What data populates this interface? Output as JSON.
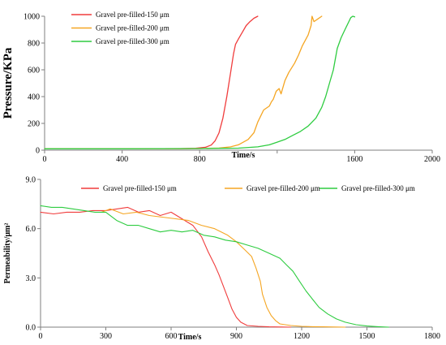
{
  "chart_data": [
    {
      "type": "line",
      "title": "",
      "xlabel": "Time/s",
      "ylabel": "Pressure/KPa",
      "xlim": [
        0,
        2000
      ],
      "ylim": [
        0,
        1000
      ],
      "xticks": [
        0,
        400,
        800,
        1200,
        1600,
        2000
      ],
      "xtick_labels": [
        "0",
        "400",
        "800",
        "",
        "1600",
        "2000"
      ],
      "yticks": [
        0,
        200,
        400,
        600,
        800,
        1000
      ],
      "ytick_labels": [
        "0",
        "200",
        "400",
        "600",
        "800",
        "1000"
      ],
      "grid": false,
      "legend": "top-left",
      "series": [
        {
          "name": "Gravel pre-filled-150 μm",
          "color": "#f03c3c",
          "x": [
            0,
            400,
            700,
            780,
            830,
            860,
            880,
            900,
            920,
            940,
            960,
            975,
            985,
            1000,
            1020,
            1040,
            1060,
            1080,
            1100
          ],
          "y": [
            10,
            10,
            11,
            14,
            22,
            38,
            70,
            130,
            240,
            400,
            580,
            720,
            790,
            830,
            880,
            930,
            960,
            985,
            1000
          ]
        },
        {
          "name": "Gravel pre-filled-200 μm",
          "color": "#f5a623",
          "x": [
            0,
            400,
            800,
            900,
            960,
            1000,
            1050,
            1080,
            1100,
            1130,
            1160,
            1170,
            1180,
            1195,
            1210,
            1220,
            1240,
            1260,
            1290,
            1310,
            1330,
            1360,
            1375,
            1380,
            1390,
            1410,
            1430
          ],
          "y": [
            10,
            10,
            12,
            16,
            25,
            40,
            80,
            130,
            210,
            300,
            330,
            360,
            380,
            440,
            460,
            420,
            520,
            580,
            650,
            710,
            780,
            860,
            930,
            1000,
            960,
            980,
            1000
          ]
        },
        {
          "name": "Gravel pre-filled-300 μm",
          "color": "#2ecc40",
          "x": [
            0,
            400,
            800,
            1000,
            1100,
            1160,
            1200,
            1240,
            1280,
            1320,
            1360,
            1400,
            1430,
            1450,
            1470,
            1490,
            1500,
            1510,
            1530,
            1550,
            1570,
            1580,
            1590,
            1600
          ],
          "y": [
            10,
            10,
            12,
            15,
            25,
            40,
            60,
            80,
            110,
            140,
            180,
            240,
            320,
            400,
            500,
            600,
            680,
            760,
            840,
            900,
            960,
            990,
            1000,
            995
          ]
        }
      ]
    },
    {
      "type": "line",
      "title": "",
      "xlabel": "Time/s",
      "ylabel": "Permeability/μm²",
      "xlim": [
        0,
        1800
      ],
      "ylim": [
        0,
        9
      ],
      "xticks": [
        0,
        300,
        600,
        900,
        1200,
        1500,
        1800
      ],
      "xtick_labels": [
        "0",
        "300",
        "600",
        "900",
        "1200",
        "1500",
        "1800"
      ],
      "yticks": [
        0,
        3,
        6,
        9
      ],
      "ytick_labels": [
        "0.0",
        "3.0",
        "6.0",
        "9.0"
      ],
      "grid": false,
      "legend": "top",
      "series": [
        {
          "name": "Gravel pre-filled-150 μm",
          "color": "#f03c3c",
          "x": [
            0,
            60,
            120,
            180,
            240,
            300,
            350,
            400,
            450,
            500,
            550,
            600,
            650,
            700,
            740,
            770,
            800,
            820,
            840,
            860,
            880,
            900,
            920,
            950,
            1000,
            1050,
            1100,
            1150
          ],
          "y": [
            7.0,
            6.9,
            7.0,
            7.0,
            7.1,
            7.1,
            7.2,
            7.3,
            7.0,
            7.1,
            6.8,
            7.0,
            6.6,
            6.2,
            5.5,
            4.6,
            3.8,
            3.2,
            2.5,
            1.8,
            1.1,
            0.6,
            0.3,
            0.1,
            0.05,
            0.02,
            0.01,
            0.0
          ]
        },
        {
          "name": "Gravel pre-filled-200 μm",
          "color": "#f5a623",
          "x": [
            280,
            320,
            380,
            440,
            500,
            560,
            620,
            680,
            740,
            800,
            860,
            900,
            940,
            970,
            990,
            1010,
            1020,
            1040,
            1060,
            1080,
            1100,
            1150,
            1200,
            1250,
            1300,
            1350,
            1400
          ],
          "y": [
            7.0,
            7.2,
            6.9,
            7.0,
            6.8,
            6.7,
            6.6,
            6.5,
            6.2,
            6.0,
            5.6,
            5.2,
            4.7,
            4.3,
            3.6,
            2.8,
            2.0,
            1.2,
            0.7,
            0.4,
            0.2,
            0.1,
            0.05,
            0.03,
            0.02,
            0.01,
            0.0
          ]
        },
        {
          "name": "Gravel pre-filled-300 μm",
          "color": "#2ecc40",
          "x": [
            0,
            50,
            100,
            150,
            200,
            250,
            300,
            350,
            400,
            450,
            500,
            550,
            600,
            650,
            700,
            750,
            800,
            850,
            900,
            950,
            1000,
            1050,
            1100,
            1130,
            1160,
            1190,
            1220,
            1250,
            1280,
            1320,
            1360,
            1400,
            1450,
            1500,
            1550,
            1600
          ],
          "y": [
            7.4,
            7.3,
            7.3,
            7.2,
            7.1,
            7.0,
            7.0,
            6.5,
            6.2,
            6.2,
            6.0,
            5.8,
            5.9,
            5.8,
            5.9,
            5.6,
            5.5,
            5.3,
            5.2,
            5.0,
            4.8,
            4.5,
            4.2,
            3.8,
            3.4,
            2.8,
            2.2,
            1.7,
            1.2,
            0.8,
            0.5,
            0.3,
            0.15,
            0.07,
            0.03,
            0.0
          ]
        }
      ]
    }
  ]
}
